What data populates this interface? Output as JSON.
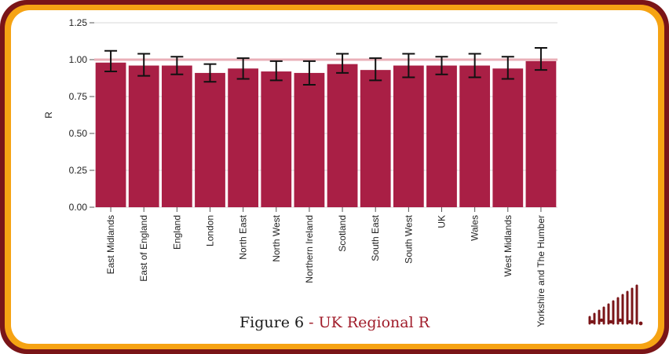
{
  "caption": {
    "figure": "Figure 6",
    "separator": " - ",
    "title": "UK Regional R"
  },
  "colors": {
    "bar": "#a91f45",
    "reference_line": "#eab0b8",
    "error_bar": "#111111",
    "frame_outer": "#7a1518",
    "frame_mid": "#f6a313"
  },
  "logo": {
    "icon": "signal-bars-logo-icon"
  },
  "chart_data": {
    "type": "bar",
    "title": "",
    "xlabel": "",
    "ylabel": "R",
    "ylim": [
      0,
      1.25
    ],
    "yticks": [
      "0.00",
      "0.25",
      "0.50",
      "0.75",
      "1.00",
      "1.25"
    ],
    "reference_line": 1.0,
    "grid": "horizontal",
    "categories": [
      "East Midlands",
      "East of England",
      "England",
      "London",
      "North East",
      "North West",
      "Northern Ireland",
      "Scotland",
      "South East",
      "South West",
      "UK",
      "Wales",
      "West Midlands",
      "Yorkshire and The Humber"
    ],
    "values": [
      0.98,
      0.96,
      0.96,
      0.91,
      0.94,
      0.92,
      0.91,
      0.97,
      0.93,
      0.96,
      0.96,
      0.96,
      0.94,
      0.99
    ],
    "lower": [
      0.92,
      0.89,
      0.9,
      0.85,
      0.87,
      0.86,
      0.83,
      0.91,
      0.86,
      0.88,
      0.9,
      0.88,
      0.87,
      0.93
    ],
    "upper": [
      1.06,
      1.04,
      1.02,
      0.97,
      1.01,
      0.99,
      0.99,
      1.04,
      1.01,
      1.04,
      1.02,
      1.04,
      1.02,
      1.08
    ]
  }
}
